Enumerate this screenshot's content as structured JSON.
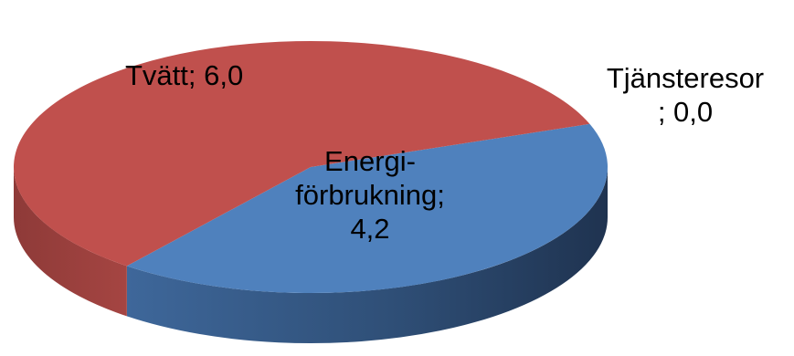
{
  "chart_data": {
    "type": "pie",
    "style": "3d",
    "categories": [
      "Tvätt",
      "Energiförbrukning",
      "Tjänsteresor"
    ],
    "values": [
      6.0,
      4.2,
      0.0
    ],
    "colors": {
      "Tvätt": "#C0504D",
      "Energiförbrukning": "#4F81BD",
      "Tjänsteresor": "#9BBB59"
    },
    "data_labels": {
      "tvatt": "Tvätt; 6,0",
      "energi_line1": "Energi-",
      "energi_line2": "förbrukning;",
      "energi_line3": "4,2",
      "tjanst_line1": "Tjänsteresor",
      "tjanst_line2": "; 0,0"
    },
    "legend": "none"
  }
}
